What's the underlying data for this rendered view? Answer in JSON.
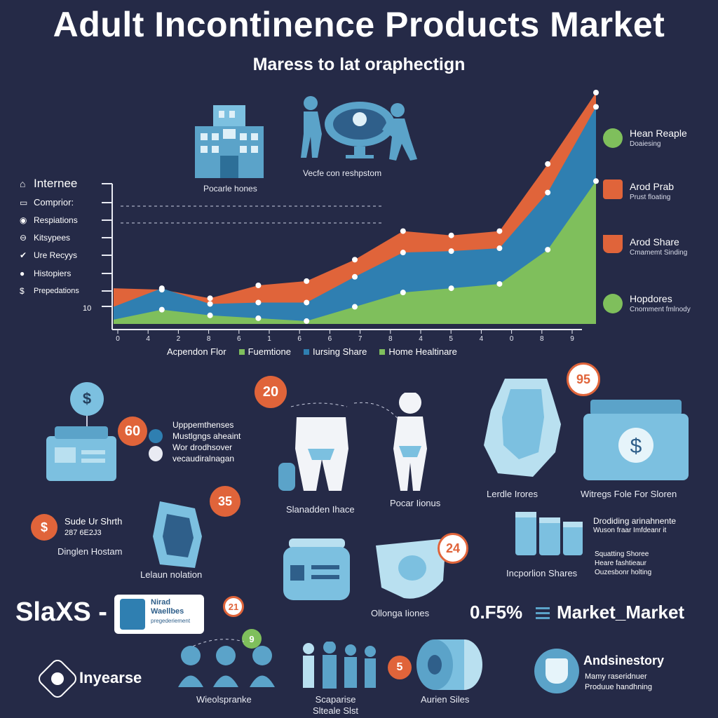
{
  "header": {
    "title": "Adult Incontinence Products Market",
    "subtitle": "Maress to lat oraphectign"
  },
  "top_icons": {
    "building_label": "Pocarle hones",
    "care_label": "Vecfe con reshpstom"
  },
  "y_labels": [
    {
      "icon": "home",
      "text": "Internee"
    },
    {
      "icon": "box",
      "text": "Comprior:"
    },
    {
      "icon": "pill",
      "text": "Respiations"
    },
    {
      "icon": "bandage",
      "text": "Kitsypees"
    },
    {
      "icon": "check",
      "text": "Ure Recyys"
    },
    {
      "icon": "person",
      "text": "Histopiers"
    },
    {
      "icon": "dollar",
      "text": "Prepedations"
    },
    {
      "icon": "",
      "text": "10"
    }
  ],
  "chart_data": {
    "type": "area",
    "x_ticks": [
      "0",
      "4",
      "2",
      "8",
      "6",
      "1",
      "6",
      "6",
      "7",
      "8",
      "4",
      "5",
      "4",
      "0",
      "8",
      "9"
    ],
    "series": [
      {
        "name": "Home Healtinare",
        "color": "#7fbf5c",
        "values": [
          3,
          10,
          6,
          4,
          2,
          12,
          22,
          25,
          28,
          52,
          100
        ]
      },
      {
        "name": "Iursing Share",
        "color": "#2f7fb1",
        "values": [
          12,
          25,
          14,
          15,
          15,
          33,
          50,
          51,
          53,
          92,
          152
        ]
      },
      {
        "name": "Fuemtione",
        "color": "#e0643a",
        "values": [
          25,
          24,
          18,
          27,
          30,
          45,
          65,
          62,
          65,
          112,
          162
        ]
      }
    ],
    "legend": [
      "Acpendon Flor",
      "Fuemtione",
      "Iursing Share",
      "Home Healtinare"
    ]
  },
  "right_legend": [
    {
      "title": "Hean Reaple",
      "sub": "Doaiesing",
      "icon": "green-circle-icon"
    },
    {
      "title": "Arod Prab",
      "sub": "Prust floating",
      "icon": "drop-icon"
    },
    {
      "title": "Arod Share",
      "sub": "Cmamemt Sinding",
      "icon": "cup-icon"
    },
    {
      "title": "Hopdores",
      "sub": "Cnomment fmlnody",
      "icon": "green-circle-icon"
    }
  ],
  "infographic": {
    "badge_60": "60",
    "text_60": [
      "Upppemthenses",
      "Mustlgngs aheaint",
      "Wor drodhsover",
      "vecaudiralnagan"
    ],
    "badge_20": "20",
    "label_body1": "Slanadden Ihace",
    "label_body2": "Pocar Iionus",
    "badge_95": "95",
    "label_pad": "Lerdle Irores",
    "label_bag": "Witregs Fole For Sloren",
    "badge_35": "35",
    "dollar_text": [
      "Sude Ur Shrth",
      "287 6E2J3"
    ],
    "dollar_sub": "Dinglen Hostam",
    "label_pad2": "Lelaun nolation",
    "badge_24": "24",
    "label_oblong": "Ollonga Iiones",
    "right_text": [
      "Drodiding arinahnente",
      "Wuson fraar Imfdeanr it"
    ],
    "right_text2": [
      "Squatting Shoree",
      "Heare fashtieaur",
      "Ouzesbonr holting"
    ],
    "label_inpo": "Incporlion Shares",
    "slaxs": "SlaXS -",
    "card": [
      "Nirad",
      "Waellbes",
      "pregederiement"
    ],
    "badge_21": "21",
    "badge_9": "9",
    "share_value": "0.F5%",
    "market_label": "Market_Market",
    "inyearse": "Inyearse",
    "label_people": "Wieolspranke",
    "label_family": [
      "Scaparise",
      "Slteale Slst"
    ],
    "badge_5": "5",
    "label_roll": "Aurien Siles",
    "ands_title": "Andsinestory",
    "ands_sub": [
      "Mamy raseridnuer",
      "Produue handhning"
    ]
  }
}
